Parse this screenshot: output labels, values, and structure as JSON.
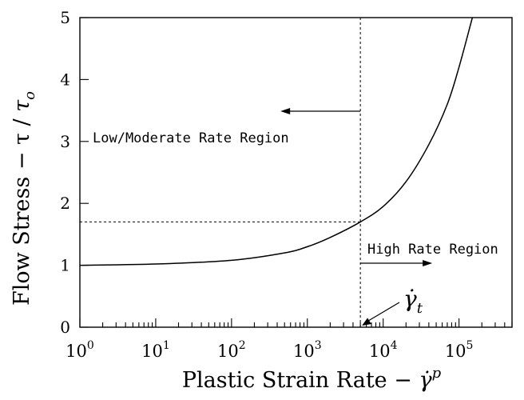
{
  "chart_data": {
    "type": "line",
    "x_scale": "log",
    "xlim": [
      1,
      500000
    ],
    "ylim": [
      0,
      5
    ],
    "x_ticks": [
      {
        "value": 1,
        "base": "10",
        "exp": "0"
      },
      {
        "value": 10,
        "base": "10",
        "exp": "1"
      },
      {
        "value": 100,
        "base": "10",
        "exp": "2"
      },
      {
        "value": 1000,
        "base": "10",
        "exp": "3"
      },
      {
        "value": 10000,
        "base": "10",
        "exp": "4"
      },
      {
        "value": 100000,
        "base": "10",
        "exp": "5"
      }
    ],
    "y_ticks": [
      {
        "value": 0,
        "label": "0"
      },
      {
        "value": 1,
        "label": "1"
      },
      {
        "value": 2,
        "label": "2"
      },
      {
        "value": 3,
        "label": "3"
      },
      {
        "value": 4,
        "label": "4"
      },
      {
        "value": 5,
        "label": "5"
      }
    ],
    "xlabel": {
      "text": "Plastic Strain Rate − ",
      "symbol": "γ̇",
      "sup": "p"
    },
    "ylabel": {
      "text": "Flow Stress − τ / ",
      "symbol": "τ",
      "sub": "o"
    },
    "series": [
      {
        "points": [
          {
            "x": 1,
            "y": 1.0
          },
          {
            "x": 10,
            "y": 1.02
          },
          {
            "x": 100,
            "y": 1.08
          },
          {
            "x": 500,
            "y": 1.2
          },
          {
            "x": 1000,
            "y": 1.3
          },
          {
            "x": 2000,
            "y": 1.45
          },
          {
            "x": 5000,
            "y": 1.7
          },
          {
            "x": 10000,
            "y": 1.95
          },
          {
            "x": 20000,
            "y": 2.35
          },
          {
            "x": 40000,
            "y": 2.95
          },
          {
            "x": 70000,
            "y": 3.6
          },
          {
            "x": 100000,
            "y": 4.2
          },
          {
            "x": 150000,
            "y": 5.0
          }
        ]
      }
    ],
    "transition": {
      "x": 5000,
      "y": 1.7
    },
    "annotations": {
      "low_region": "Low/Moderate Rate Region",
      "high_region": "High Rate Region",
      "transition_label": {
        "symbol": "γ̇",
        "sub": "t"
      }
    }
  }
}
